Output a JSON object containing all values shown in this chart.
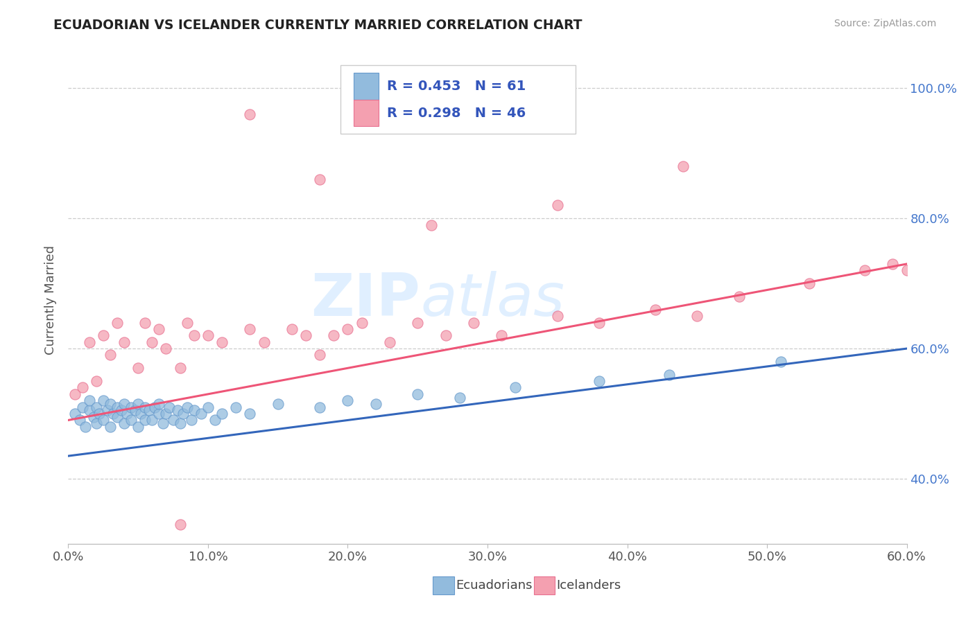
{
  "title": "ECUADORIAN VS ICELANDER CURRENTLY MARRIED CORRELATION CHART",
  "source": "Source: ZipAtlas.com",
  "ylabel_label": "Currently Married",
  "xlim": [
    0.0,
    0.6
  ],
  "ylim": [
    0.3,
    1.05
  ],
  "yticks": [
    0.4,
    0.6,
    0.8,
    1.0
  ],
  "xticks": [
    0.0,
    0.1,
    0.2,
    0.3,
    0.4,
    0.5,
    0.6
  ],
  "ecuadorians_R": 0.453,
  "ecuadorians_N": 61,
  "icelanders_R": 0.298,
  "icelanders_N": 46,
  "blue_color": "#92BBDD",
  "pink_color": "#F4A0B0",
  "blue_edge_color": "#6699CC",
  "pink_edge_color": "#E87090",
  "blue_line_color": "#3366BB",
  "pink_line_color": "#EE5577",
  "text_color": "#3355BB",
  "watermark_color": "#DDEEFF",
  "ecu_x": [
    0.005,
    0.008,
    0.01,
    0.012,
    0.015,
    0.015,
    0.018,
    0.02,
    0.02,
    0.022,
    0.025,
    0.025,
    0.028,
    0.03,
    0.03,
    0.032,
    0.035,
    0.035,
    0.038,
    0.04,
    0.04,
    0.042,
    0.045,
    0.045,
    0.048,
    0.05,
    0.05,
    0.052,
    0.055,
    0.055,
    0.058,
    0.06,
    0.062,
    0.065,
    0.065,
    0.068,
    0.07,
    0.072,
    0.075,
    0.078,
    0.08,
    0.082,
    0.085,
    0.088,
    0.09,
    0.095,
    0.1,
    0.105,
    0.11,
    0.12,
    0.13,
    0.15,
    0.18,
    0.2,
    0.22,
    0.25,
    0.28,
    0.32,
    0.38,
    0.43,
    0.51
  ],
  "ecu_y": [
    0.5,
    0.49,
    0.51,
    0.48,
    0.505,
    0.52,
    0.495,
    0.485,
    0.51,
    0.5,
    0.49,
    0.52,
    0.505,
    0.515,
    0.48,
    0.5,
    0.51,
    0.495,
    0.505,
    0.515,
    0.485,
    0.5,
    0.51,
    0.49,
    0.505,
    0.515,
    0.48,
    0.5,
    0.51,
    0.49,
    0.505,
    0.49,
    0.51,
    0.5,
    0.515,
    0.485,
    0.5,
    0.51,
    0.49,
    0.505,
    0.485,
    0.5,
    0.51,
    0.49,
    0.505,
    0.5,
    0.51,
    0.49,
    0.5,
    0.51,
    0.5,
    0.515,
    0.51,
    0.52,
    0.515,
    0.53,
    0.525,
    0.54,
    0.55,
    0.56,
    0.58
  ],
  "ice_x": [
    0.005,
    0.01,
    0.015,
    0.02,
    0.025,
    0.03,
    0.035,
    0.04,
    0.05,
    0.055,
    0.06,
    0.065,
    0.07,
    0.08,
    0.085,
    0.09,
    0.1,
    0.11,
    0.13,
    0.14,
    0.16,
    0.17,
    0.18,
    0.19,
    0.2,
    0.21,
    0.23,
    0.25,
    0.27,
    0.29,
    0.31,
    0.35,
    0.38,
    0.42,
    0.45,
    0.48,
    0.53,
    0.57,
    0.59,
    0.6,
    0.44,
    0.35,
    0.26,
    0.18,
    0.13,
    0.08
  ],
  "ice_y": [
    0.53,
    0.54,
    0.61,
    0.55,
    0.62,
    0.59,
    0.64,
    0.61,
    0.57,
    0.64,
    0.61,
    0.63,
    0.6,
    0.57,
    0.64,
    0.62,
    0.62,
    0.61,
    0.63,
    0.61,
    0.63,
    0.62,
    0.59,
    0.62,
    0.63,
    0.64,
    0.61,
    0.64,
    0.62,
    0.64,
    0.62,
    0.65,
    0.64,
    0.66,
    0.65,
    0.68,
    0.7,
    0.72,
    0.73,
    0.72,
    0.88,
    0.82,
    0.79,
    0.86,
    0.96,
    0.33
  ],
  "ecu_trend": [
    0.435,
    0.6
  ],
  "ice_trend": [
    0.49,
    0.73
  ]
}
